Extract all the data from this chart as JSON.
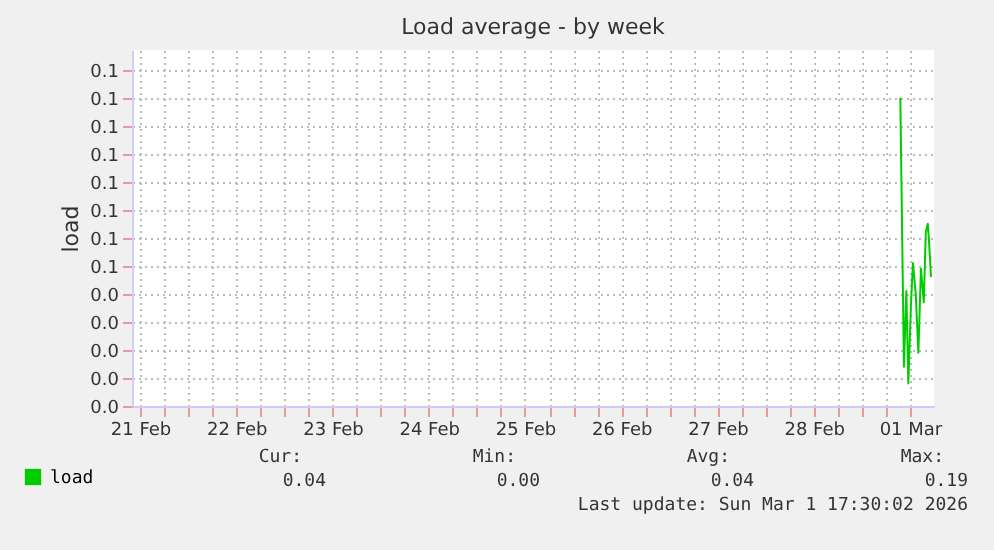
{
  "chart_data": {
    "type": "line",
    "title": "Load average - by week",
    "ylabel": "load",
    "x": [
      "2026-02-28T21:36",
      "2026-02-28T22:30",
      "2026-02-28T23:06",
      "2026-02-28T23:36",
      "2026-03-01T00:15",
      "2026-03-01T00:45",
      "2026-03-01T01:27",
      "2026-03-01T02:06",
      "2026-03-01T02:45",
      "2026-03-01T03:27",
      "2026-03-01T03:57",
      "2026-03-01T04:27",
      "2026-03-01T04:45",
      "2026-03-01T05:15"
    ],
    "series": [
      {
        "name": "load",
        "color": "#00cc00",
        "values": [
          0.11,
          0.014,
          0.041,
          0.008,
          0.036,
          0.051,
          0.04,
          0.019,
          0.049,
          0.037,
          0.062,
          0.065,
          0.059,
          0.046
        ]
      }
    ],
    "xlim": [
      "2026-02-20T22:00",
      "2026-03-01T06:00"
    ],
    "xticks": [
      {
        "value": "2026-02-21T00:00",
        "label": "21 Feb"
      },
      {
        "value": "2026-02-21T06:00",
        "label": null
      },
      {
        "value": "2026-02-21T12:00",
        "label": null
      },
      {
        "value": "2026-02-21T18:00",
        "label": null
      },
      {
        "value": "2026-02-22T00:00",
        "label": "22 Feb"
      },
      {
        "value": "2026-02-22T06:00",
        "label": null
      },
      {
        "value": "2026-02-22T12:00",
        "label": null
      },
      {
        "value": "2026-02-22T18:00",
        "label": null
      },
      {
        "value": "2026-02-23T00:00",
        "label": "23 Feb"
      },
      {
        "value": "2026-02-23T06:00",
        "label": null
      },
      {
        "value": "2026-02-23T12:00",
        "label": null
      },
      {
        "value": "2026-02-23T18:00",
        "label": null
      },
      {
        "value": "2026-02-24T00:00",
        "label": "24 Feb"
      },
      {
        "value": "2026-02-24T06:00",
        "label": null
      },
      {
        "value": "2026-02-24T12:00",
        "label": null
      },
      {
        "value": "2026-02-24T18:00",
        "label": null
      },
      {
        "value": "2026-02-25T00:00",
        "label": "25 Feb"
      },
      {
        "value": "2026-02-25T06:00",
        "label": null
      },
      {
        "value": "2026-02-25T12:00",
        "label": null
      },
      {
        "value": "2026-02-25T18:00",
        "label": null
      },
      {
        "value": "2026-02-26T00:00",
        "label": "26 Feb"
      },
      {
        "value": "2026-02-26T06:00",
        "label": null
      },
      {
        "value": "2026-02-26T12:00",
        "label": null
      },
      {
        "value": "2026-02-26T18:00",
        "label": null
      },
      {
        "value": "2026-02-27T00:00",
        "label": "27 Feb"
      },
      {
        "value": "2026-02-27T06:00",
        "label": null
      },
      {
        "value": "2026-02-27T12:00",
        "label": null
      },
      {
        "value": "2026-02-27T18:00",
        "label": null
      },
      {
        "value": "2026-02-28T00:00",
        "label": "28 Feb"
      },
      {
        "value": "2026-02-28T06:00",
        "label": null
      },
      {
        "value": "2026-02-28T12:00",
        "label": null
      },
      {
        "value": "2026-02-28T18:00",
        "label": null
      },
      {
        "value": "2026-03-01T00:00",
        "label": "01 Mar"
      }
    ],
    "ylim": [
      0,
      0.127
    ],
    "yticks": [
      {
        "value": 0,
        "label": "0.0"
      },
      {
        "value": 0.01,
        "label": "0.0"
      },
      {
        "value": 0.02,
        "label": "0.0"
      },
      {
        "value": 0.03,
        "label": "0.0"
      },
      {
        "value": 0.04,
        "label": "0.0"
      },
      {
        "value": 0.05,
        "label": "0.1"
      },
      {
        "value": 0.06,
        "label": "0.1"
      },
      {
        "value": 0.07,
        "label": "0.1"
      },
      {
        "value": 0.08,
        "label": "0.1"
      },
      {
        "value": 0.09,
        "label": "0.1"
      },
      {
        "value": 0.1,
        "label": "0.1"
      },
      {
        "value": 0.11,
        "label": "0.1"
      },
      {
        "value": 0.12,
        "label": "0.1"
      }
    ],
    "grid": true,
    "legend": "bottom left",
    "line_style": "solid",
    "marker": "none",
    "annotations": [
      "Cur:",
      "Min:",
      "Avg:",
      "Max:",
      "0.04",
      "0.00",
      "0.04",
      "0.19",
      "Last update: Sun Mar  1 17:30:02 2026"
    ]
  }
}
